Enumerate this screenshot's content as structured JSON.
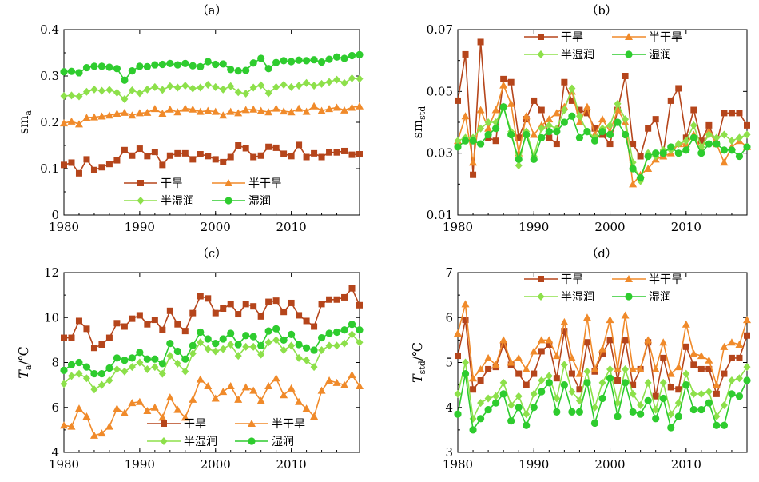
{
  "figure": {
    "colors": {
      "arid": "#b5451b",
      "semi_arid": "#f08a2a",
      "semi_humid": "#8de04a",
      "humid": "#2ecc2e"
    },
    "marker_shapes": [
      "square",
      "triangle",
      "diamond",
      "circle"
    ]
  },
  "chart_data": [
    {
      "id": "a",
      "type": "line",
      "panel_label": "（a）",
      "ylabel_main": "sm",
      "ylabel_sub": "a",
      "ylabel_unit": "",
      "xlim": [
        1980,
        2019
      ],
      "ylim": [
        0,
        0.4
      ],
      "xticks": [
        1980,
        1990,
        2000,
        2010
      ],
      "yticks": [
        0,
        0.1,
        0.2,
        0.3,
        0.4
      ],
      "ytick_labels": [
        "0",
        "0.1",
        "0.2",
        "0.3",
        "0.4"
      ],
      "grid": false,
      "legend_position": "bottom-right",
      "x": [
        1980,
        1981,
        1982,
        1983,
        1984,
        1985,
        1986,
        1987,
        1988,
        1989,
        1990,
        1991,
        1992,
        1993,
        1994,
        1995,
        1996,
        1997,
        1998,
        1999,
        2000,
        2001,
        2002,
        2003,
        2004,
        2005,
        2006,
        2007,
        2008,
        2009,
        2010,
        2011,
        2012,
        2013,
        2014,
        2015,
        2016,
        2017,
        2018,
        2019
      ],
      "series": [
        {
          "name": "干旱",
          "color_key": "arid",
          "marker": "square",
          "values": [
            0.108,
            0.113,
            0.09,
            0.12,
            0.097,
            0.103,
            0.11,
            0.118,
            0.14,
            0.128,
            0.143,
            0.127,
            0.136,
            0.108,
            0.128,
            0.133,
            0.133,
            0.12,
            0.131,
            0.127,
            0.12,
            0.114,
            0.125,
            0.15,
            0.144,
            0.125,
            0.128,
            0.147,
            0.145,
            0.132,
            0.127,
            0.151,
            0.125,
            0.133,
            0.125,
            0.135,
            0.135,
            0.138,
            0.13,
            0.131
          ]
        },
        {
          "name": "半干旱",
          "color_key": "semi_arid",
          "marker": "triangle",
          "values": [
            0.198,
            0.202,
            0.196,
            0.21,
            0.211,
            0.213,
            0.215,
            0.219,
            0.221,
            0.215,
            0.22,
            0.221,
            0.229,
            0.219,
            0.228,
            0.222,
            0.23,
            0.228,
            0.223,
            0.225,
            0.223,
            0.215,
            0.223,
            0.22,
            0.227,
            0.228,
            0.225,
            0.222,
            0.23,
            0.224,
            0.222,
            0.23,
            0.223,
            0.235,
            0.225,
            0.229,
            0.232,
            0.226,
            0.232,
            0.235
          ]
        },
        {
          "name": "半湿润",
          "color_key": "semi_humid",
          "marker": "diamond",
          "values": [
            0.257,
            0.258,
            0.256,
            0.266,
            0.271,
            0.268,
            0.27,
            0.264,
            0.25,
            0.269,
            0.263,
            0.271,
            0.276,
            0.27,
            0.278,
            0.275,
            0.279,
            0.273,
            0.275,
            0.281,
            0.276,
            0.271,
            0.278,
            0.265,
            0.262,
            0.275,
            0.28,
            0.263,
            0.276,
            0.281,
            0.276,
            0.279,
            0.285,
            0.279,
            0.283,
            0.287,
            0.292,
            0.285,
            0.295,
            0.294
          ]
        },
        {
          "name": "湿润",
          "color_key": "humid",
          "marker": "circle",
          "values": [
            0.309,
            0.31,
            0.307,
            0.318,
            0.321,
            0.321,
            0.319,
            0.316,
            0.291,
            0.311,
            0.321,
            0.32,
            0.324,
            0.325,
            0.327,
            0.324,
            0.327,
            0.322,
            0.32,
            0.331,
            0.325,
            0.326,
            0.314,
            0.311,
            0.312,
            0.328,
            0.338,
            0.316,
            0.329,
            0.333,
            0.331,
            0.334,
            0.333,
            0.335,
            0.33,
            0.336,
            0.341,
            0.338,
            0.344,
            0.346
          ]
        }
      ]
    },
    {
      "id": "b",
      "type": "line",
      "panel_label": "（b）",
      "ylabel_main": "sm",
      "ylabel_sub": "std",
      "ylabel_unit": "",
      "xlim": [
        1980,
        2018
      ],
      "ylim": [
        0.01,
        0.07
      ],
      "xticks": [
        1980,
        1990,
        2000,
        2010
      ],
      "yticks": [
        0.01,
        0.03,
        0.05,
        0.07
      ],
      "ytick_labels": [
        "0.01",
        "0.03",
        "0.05",
        "0.07"
      ],
      "grid": false,
      "legend_position": "top-right",
      "x": [
        1980,
        1981,
        1982,
        1983,
        1984,
        1985,
        1986,
        1987,
        1988,
        1989,
        1990,
        1991,
        1992,
        1993,
        1994,
        1995,
        1996,
        1997,
        1998,
        1999,
        2000,
        2001,
        2002,
        2003,
        2004,
        2005,
        2006,
        2007,
        2008,
        2009,
        2010,
        2011,
        2012,
        2013,
        2014,
        2015,
        2016,
        2017,
        2018
      ],
      "series": [
        {
          "name": "干旱",
          "color_key": "arid",
          "marker": "square",
          "values": [
            0.047,
            0.062,
            0.023,
            0.066,
            0.035,
            0.034,
            0.054,
            0.053,
            0.035,
            0.041,
            0.047,
            0.044,
            0.035,
            0.033,
            0.053,
            0.047,
            0.044,
            0.043,
            0.038,
            0.036,
            0.033,
            0.044,
            0.055,
            0.033,
            0.029,
            0.038,
            0.041,
            0.03,
            0.047,
            0.051,
            0.035,
            0.044,
            0.034,
            0.039,
            0.033,
            0.043,
            0.043,
            0.043,
            0.039
          ]
        },
        {
          "name": "半干旱",
          "color_key": "semi_arid",
          "marker": "triangle",
          "values": [
            0.034,
            0.042,
            0.027,
            0.044,
            0.038,
            0.044,
            0.052,
            0.046,
            0.03,
            0.042,
            0.036,
            0.039,
            0.041,
            0.043,
            0.045,
            0.05,
            0.04,
            0.045,
            0.036,
            0.041,
            0.037,
            0.044,
            0.04,
            0.02,
            0.023,
            0.025,
            0.028,
            0.029,
            0.03,
            0.033,
            0.033,
            0.036,
            0.031,
            0.037,
            0.033,
            0.027,
            0.032,
            0.034,
            0.032
          ]
        },
        {
          "name": "半湿润",
          "color_key": "semi_humid",
          "marker": "diamond",
          "values": [
            0.034,
            0.035,
            0.035,
            0.038,
            0.04,
            0.04,
            0.045,
            0.037,
            0.026,
            0.037,
            0.029,
            0.038,
            0.039,
            0.038,
            0.044,
            0.051,
            0.042,
            0.037,
            0.035,
            0.038,
            0.039,
            0.046,
            0.041,
            0.027,
            0.021,
            0.03,
            0.029,
            0.031,
            0.031,
            0.033,
            0.034,
            0.039,
            0.032,
            0.036,
            0.035,
            0.036,
            0.034,
            0.035,
            0.036
          ]
        },
        {
          "name": "湿润",
          "color_key": "humid",
          "marker": "circle",
          "values": [
            0.032,
            0.034,
            0.034,
            0.033,
            0.036,
            0.038,
            0.045,
            0.036,
            0.028,
            0.036,
            0.028,
            0.035,
            0.037,
            0.037,
            0.04,
            0.042,
            0.035,
            0.037,
            0.034,
            0.037,
            0.036,
            0.04,
            0.036,
            0.025,
            0.022,
            0.029,
            0.03,
            0.03,
            0.032,
            0.03,
            0.031,
            0.035,
            0.03,
            0.033,
            0.033,
            0.031,
            0.031,
            0.029,
            0.032
          ]
        }
      ]
    },
    {
      "id": "c",
      "type": "line",
      "panel_label": "（c）",
      "ylabel_main": "T",
      "ylabel_sub": "a",
      "ylabel_unit": "/℃",
      "xlim": [
        1980,
        2019
      ],
      "ylim": [
        4,
        12
      ],
      "xticks": [
        1980,
        1990,
        2000,
        2010
      ],
      "yticks": [
        4,
        6,
        8,
        10,
        12
      ],
      "ytick_labels": [
        "4",
        "6",
        "8",
        "10",
        "12"
      ],
      "grid": false,
      "legend_position": "bottom-right",
      "x": [
        1980,
        1981,
        1982,
        1983,
        1984,
        1985,
        1986,
        1987,
        1988,
        1989,
        1990,
        1991,
        1992,
        1993,
        1994,
        1995,
        1996,
        1997,
        1998,
        1999,
        2000,
        2001,
        2002,
        2003,
        2004,
        2005,
        2006,
        2007,
        2008,
        2009,
        2010,
        2011,
        2012,
        2013,
        2014,
        2015,
        2016,
        2017,
        2018,
        2019
      ],
      "series": [
        {
          "name": "干旱",
          "color_key": "arid",
          "marker": "square",
          "values": [
            9.1,
            9.1,
            9.85,
            9.5,
            8.65,
            8.8,
            9.1,
            9.75,
            9.6,
            9.95,
            10.1,
            9.7,
            9.9,
            9.45,
            10.3,
            9.7,
            9.4,
            10.2,
            10.95,
            10.85,
            10.2,
            10.4,
            10.6,
            10.15,
            10.6,
            10.5,
            10.05,
            10.7,
            10.75,
            10.25,
            10.65,
            10.1,
            9.85,
            9.6,
            10.6,
            10.8,
            10.8,
            10.9,
            11.3,
            10.55
          ]
        },
        {
          "name": "半干旱",
          "color_key": "semi_arid",
          "marker": "triangle",
          "values": [
            5.2,
            5.15,
            5.95,
            5.6,
            4.75,
            4.85,
            5.15,
            5.95,
            5.75,
            6.2,
            6.25,
            5.85,
            6.0,
            5.55,
            6.45,
            5.9,
            5.55,
            6.35,
            7.25,
            6.95,
            6.4,
            6.7,
            6.95,
            6.35,
            6.9,
            6.75,
            6.3,
            6.95,
            7.3,
            6.55,
            6.85,
            6.25,
            5.95,
            5.6,
            6.75,
            7.2,
            7.1,
            7.0,
            7.45,
            6.95
          ]
        },
        {
          "name": "半湿润",
          "color_key": "semi_humid",
          "marker": "diamond",
          "values": [
            7.05,
            7.4,
            7.5,
            7.3,
            6.8,
            7.0,
            7.2,
            7.7,
            7.6,
            7.8,
            8.0,
            7.7,
            7.8,
            7.5,
            8.3,
            7.95,
            7.6,
            8.4,
            8.9,
            8.6,
            8.5,
            8.6,
            8.8,
            8.3,
            8.7,
            8.7,
            8.35,
            8.9,
            9.0,
            8.55,
            8.75,
            8.2,
            8.1,
            7.8,
            8.55,
            8.75,
            8.75,
            8.85,
            9.25,
            8.9
          ]
        },
        {
          "name": "湿润",
          "color_key": "humid",
          "marker": "circle",
          "values": [
            7.65,
            7.9,
            8.0,
            7.8,
            7.5,
            7.5,
            7.75,
            8.2,
            8.1,
            8.2,
            8.45,
            8.15,
            8.15,
            7.95,
            8.85,
            8.5,
            8.15,
            8.75,
            9.35,
            9.05,
            8.85,
            9.05,
            9.3,
            8.8,
            9.2,
            9.15,
            8.75,
            9.4,
            9.5,
            9.0,
            9.25,
            8.8,
            8.65,
            8.55,
            9.1,
            9.3,
            9.35,
            9.45,
            9.7,
            9.45
          ]
        }
      ]
    },
    {
      "id": "d",
      "type": "line",
      "panel_label": "（d）",
      "ylabel_main": "T",
      "ylabel_sub": "std",
      "ylabel_unit": "/℃",
      "xlim": [
        1980,
        2018
      ],
      "ylim": [
        3,
        7
      ],
      "xticks": [
        1980,
        1990,
        2000,
        2010
      ],
      "yticks": [
        3,
        4,
        5,
        6,
        7
      ],
      "ytick_labels": [
        "3",
        "4",
        "5",
        "6",
        "7"
      ],
      "grid": false,
      "legend_position": "top-right",
      "x": [
        1980,
        1981,
        1982,
        1983,
        1984,
        1985,
        1986,
        1987,
        1988,
        1989,
        1990,
        1991,
        1992,
        1993,
        1994,
        1995,
        1996,
        1997,
        1998,
        1999,
        2000,
        2001,
        2002,
        2003,
        2004,
        2005,
        2006,
        2007,
        2008,
        2009,
        2010,
        2011,
        2012,
        2013,
        2014,
        2015,
        2016,
        2017,
        2018
      ],
      "series": [
        {
          "name": "干旱",
          "color_key": "arid",
          "marker": "square",
          "values": [
            5.15,
            5.95,
            4.4,
            4.6,
            4.85,
            4.9,
            5.4,
            4.95,
            4.75,
            4.5,
            4.75,
            5.25,
            5.4,
            4.65,
            5.7,
            4.75,
            4.4,
            5.45,
            4.8,
            5.2,
            5.5,
            4.6,
            5.5,
            4.5,
            4.85,
            5.45,
            4.25,
            5.1,
            4.45,
            4.4,
            5.35,
            4.95,
            4.85,
            4.85,
            4.3,
            4.75,
            5.1,
            5.1,
            5.6
          ]
        },
        {
          "name": "半干旱",
          "color_key": "semi_arid",
          "marker": "triangle",
          "values": [
            5.65,
            6.3,
            4.65,
            4.85,
            5.1,
            4.95,
            5.5,
            5.0,
            5.1,
            4.85,
            5.25,
            5.5,
            5.5,
            5.15,
            5.9,
            5.1,
            4.75,
            6.0,
            4.85,
            5.3,
            5.95,
            4.85,
            6.05,
            4.85,
            4.85,
            5.5,
            4.85,
            5.45,
            4.75,
            4.9,
            5.85,
            5.2,
            5.15,
            5.05,
            4.5,
            5.35,
            5.45,
            5.4,
            5.95
          ]
        },
        {
          "name": "半湿润",
          "color_key": "semi_humid",
          "marker": "diamond",
          "values": [
            4.3,
            5.0,
            3.75,
            4.1,
            4.2,
            4.25,
            4.55,
            4.05,
            4.25,
            3.85,
            4.3,
            4.6,
            4.7,
            4.2,
            4.95,
            4.35,
            4.15,
            4.8,
            4.0,
            4.55,
            4.85,
            4.1,
            4.85,
            4.3,
            4.05,
            4.55,
            3.95,
            4.55,
            3.85,
            4.1,
            4.75,
            4.3,
            4.3,
            4.35,
            3.8,
            4.05,
            4.6,
            4.65,
            4.9
          ]
        },
        {
          "name": "湿润",
          "color_key": "humid",
          "marker": "circle",
          "values": [
            3.85,
            4.75,
            3.5,
            3.75,
            3.95,
            4.1,
            4.3,
            3.7,
            4.0,
            3.6,
            4.0,
            4.35,
            4.55,
            3.9,
            4.5,
            3.9,
            3.9,
            4.55,
            3.65,
            4.2,
            4.65,
            3.8,
            4.55,
            3.9,
            3.85,
            4.15,
            3.75,
            4.2,
            3.55,
            3.8,
            4.5,
            3.95,
            3.95,
            4.1,
            3.6,
            3.6,
            4.3,
            4.25,
            4.6
          ]
        }
      ]
    }
  ]
}
